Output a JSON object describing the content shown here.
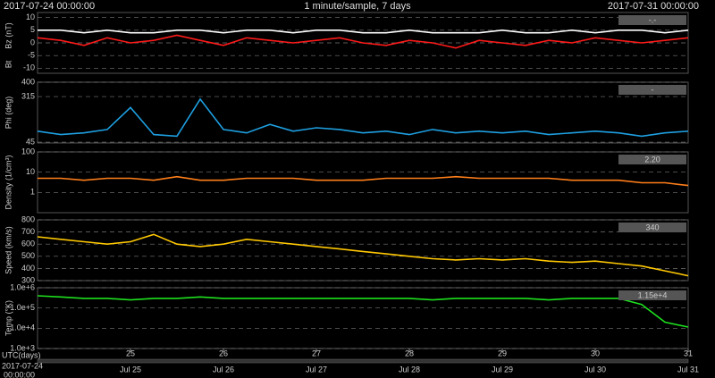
{
  "header": {
    "start": "2017-07-24 00:00:00",
    "title": "1 minute/sample, 7 days",
    "end": "2017-07-31 00:00:00"
  },
  "x_axis": {
    "xlim": [
      0,
      7
    ],
    "label": "UTC(days)",
    "start_date": "2017-07-24",
    "start_time": "00:00:00",
    "xticks": [
      {
        "value": 1,
        "label": "25"
      },
      {
        "value": 2,
        "label": "26"
      },
      {
        "value": 3,
        "label": "27"
      },
      {
        "value": 4,
        "label": "28"
      },
      {
        "value": 5,
        "label": "29"
      },
      {
        "value": 6,
        "label": "30"
      },
      {
        "value": 7,
        "label": "31"
      }
    ],
    "date_labels": [
      "Jul 25",
      "Jul 26",
      "Jul 27",
      "Jul 28",
      "Jul 29",
      "Jul 30",
      "Jul 31"
    ]
  },
  "chart_data": [
    {
      "type": "line",
      "readout": "-.-",
      "ylim": [
        -12,
        12
      ],
      "yticks": [
        -10,
        -5,
        0,
        5,
        10
      ],
      "log": false,
      "grid": true,
      "x": [
        0,
        0.25,
        0.5,
        0.75,
        1,
        1.25,
        1.5,
        1.75,
        2,
        2.25,
        2.5,
        2.75,
        3,
        3.25,
        3.5,
        3.75,
        4,
        4.25,
        4.5,
        4.75,
        5,
        5.25,
        5.5,
        5.75,
        6,
        6.25,
        6.5,
        6.75,
        7
      ],
      "series": [
        {
          "name": "Bt",
          "color": "#ffffff",
          "values": [
            5,
            5,
            4,
            5,
            4,
            4,
            5,
            5,
            4,
            5,
            5,
            4,
            5,
            5,
            4,
            4,
            5,
            4,
            4,
            4,
            5,
            4,
            4,
            5,
            4,
            5,
            5,
            4,
            5
          ]
        },
        {
          "name": "Bz (nT)",
          "color": "#ff1a1a",
          "values": [
            2,
            1,
            -1,
            2,
            0,
            1,
            3,
            1,
            -1,
            2,
            1,
            0,
            1,
            2,
            0,
            -1,
            1,
            0,
            -2,
            1,
            0,
            -1,
            1,
            0,
            2,
            1,
            0,
            1,
            2
          ]
        }
      ]
    },
    {
      "type": "line",
      "readout": "-",
      "ylim": [
        40,
        400
      ],
      "yticks": [
        45,
        315,
        400
      ],
      "log": false,
      "grid": true,
      "x": [
        0,
        0.25,
        0.5,
        0.75,
        1,
        1.25,
        1.5,
        1.75,
        2,
        2.25,
        2.5,
        2.75,
        3,
        3.25,
        3.5,
        3.75,
        4,
        4.25,
        4.5,
        4.75,
        5,
        5.25,
        5.5,
        5.75,
        6,
        6.25,
        6.5,
        6.75,
        7
      ],
      "series": [
        {
          "name": "Phi (deg)",
          "color": "#1e9fe0",
          "values": [
            110,
            90,
            100,
            120,
            250,
            90,
            80,
            300,
            120,
            100,
            150,
            110,
            130,
            120,
            100,
            110,
            90,
            120,
            100,
            110,
            100,
            110,
            90,
            100,
            110,
            100,
            80,
            100,
            110
          ]
        }
      ]
    },
    {
      "type": "line",
      "readout": "2.20",
      "ylim": [
        0.1,
        100
      ],
      "yticks": [
        1,
        10,
        100
      ],
      "log": true,
      "grid": true,
      "x": [
        0,
        0.25,
        0.5,
        0.75,
        1,
        1.25,
        1.5,
        1.75,
        2,
        2.25,
        2.5,
        2.75,
        3,
        3.25,
        3.5,
        3.75,
        4,
        4.25,
        4.5,
        4.75,
        5,
        5.25,
        5.5,
        5.75,
        6,
        6.25,
        6.5,
        6.75,
        7
      ],
      "series": [
        {
          "name": "Density (1/cm³)",
          "color": "#ff7f1a",
          "values": [
            5,
            5,
            4,
            5,
            5,
            4,
            6,
            4,
            4,
            5,
            5,
            5,
            4,
            4,
            4,
            5,
            5,
            5,
            6,
            5,
            5,
            5,
            5,
            4,
            4,
            4,
            3,
            3,
            2.2
          ]
        }
      ]
    },
    {
      "type": "line",
      "readout": "340",
      "ylim": [
        300,
        800
      ],
      "yticks": [
        300,
        400,
        500,
        600,
        700,
        800
      ],
      "log": false,
      "grid": true,
      "x": [
        0,
        0.25,
        0.5,
        0.75,
        1,
        1.25,
        1.5,
        1.75,
        2,
        2.25,
        2.5,
        2.75,
        3,
        3.25,
        3.5,
        3.75,
        4,
        4.25,
        4.5,
        4.75,
        5,
        5.25,
        5.5,
        5.75,
        6,
        6.25,
        6.5,
        6.75,
        7
      ],
      "series": [
        {
          "name": "Speed (km/s)",
          "color": "#ffc800",
          "values": [
            660,
            640,
            620,
            600,
            620,
            680,
            600,
            580,
            600,
            640,
            620,
            600,
            580,
            560,
            540,
            520,
            500,
            480,
            470,
            480,
            470,
            480,
            460,
            450,
            460,
            440,
            420,
            380,
            340
          ]
        }
      ]
    },
    {
      "type": "line",
      "readout": "1.15e+4",
      "ylim": [
        1000,
        1000000
      ],
      "log": true,
      "grid": true,
      "yticks": [
        {
          "value": 1000,
          "label": "1.0e+3"
        },
        {
          "value": 10000,
          "label": "1.0e+4"
        },
        {
          "value": 100000,
          "label": "1.0e+5"
        },
        {
          "value": 1000000,
          "label": "1.0e+6"
        }
      ],
      "x": [
        0,
        0.25,
        0.5,
        0.75,
        1,
        1.25,
        1.5,
        1.75,
        2,
        2.25,
        2.5,
        2.75,
        3,
        3.25,
        3.5,
        3.75,
        4,
        4.25,
        4.5,
        4.75,
        5,
        5.25,
        5.5,
        5.75,
        6,
        6.25,
        6.5,
        6.75,
        7
      ],
      "series": [
        {
          "name": "Temp (°K)",
          "color": "#1ee01e",
          "values": [
            400000,
            350000,
            300000,
            300000,
            250000,
            300000,
            300000,
            350000,
            300000,
            300000,
            300000,
            300000,
            300000,
            300000,
            300000,
            300000,
            300000,
            250000,
            300000,
            300000,
            300000,
            300000,
            250000,
            300000,
            300000,
            300000,
            150000,
            20000,
            11500
          ]
        }
      ]
    }
  ]
}
